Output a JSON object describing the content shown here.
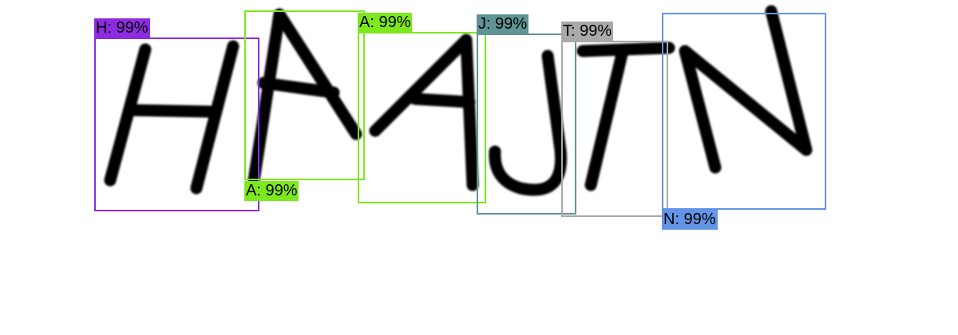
{
  "detections": [
    {
      "label": "H: 99%",
      "color": "#8e2be0"
    },
    {
      "label": "A: 99%",
      "color": "#7ee81f"
    },
    {
      "label": "A: 99%",
      "color": "#7ee81f"
    },
    {
      "label": "J: 99%",
      "color": "#5f9494"
    },
    {
      "label": "T: 99%",
      "color": "#a9a9a9"
    },
    {
      "label": "N: 99%",
      "color": "#6494e6"
    }
  ]
}
